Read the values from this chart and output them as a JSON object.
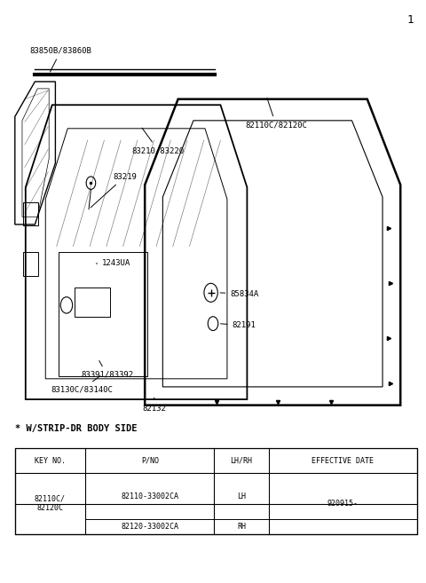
{
  "bg_color": "#ffffff",
  "title_note": "* W/STRIP-DR BODY SIDE",
  "table_headers": [
    "KEY NO.",
    "P/NO",
    "LH/RH",
    "EFFECTIVE DATE"
  ],
  "page_number": "1",
  "label_83850B": "83850B/83860B",
  "label_82110C": "82110C/82120C",
  "label_83210": "83210/83220",
  "label_83219": "83219",
  "label_1243UA": "1243UA",
  "label_85834A": "85834A",
  "label_82191": "82191",
  "label_83391": "83391/83392",
  "label_83130C": "83130C/83140C",
  "label_82132": "82132",
  "key_no": "82110C/\n82120C",
  "pno1": "82110-33002CA",
  "lhrh1": "LH",
  "pno2": "82120-33002CA",
  "lhrh2": "RH",
  "eff_date": "920915-"
}
